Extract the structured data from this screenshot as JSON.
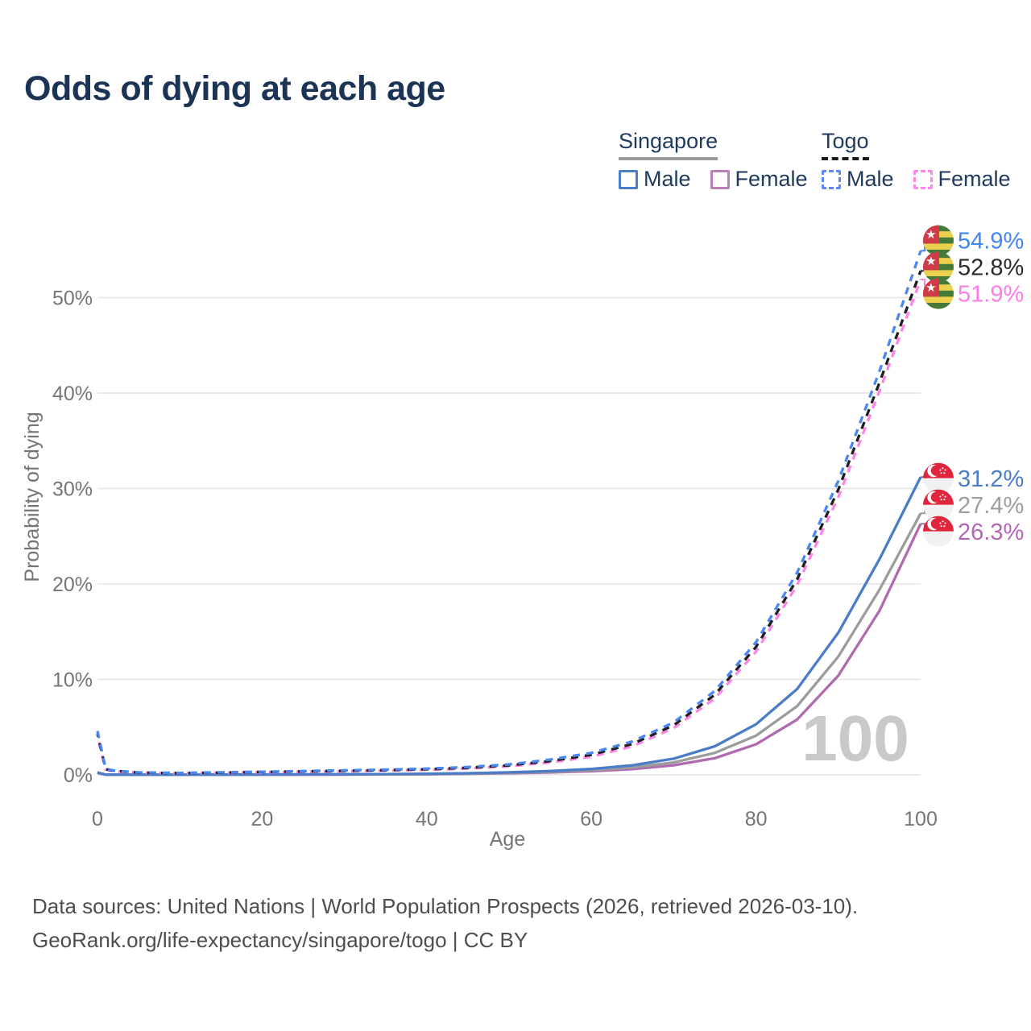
{
  "title": "Odds of dying at each age",
  "legend": {
    "groups": [
      {
        "id": "singapore",
        "label": "Singapore",
        "line_style": "solid",
        "underline_color": "#9a9a9a",
        "items": [
          {
            "id": "male",
            "label": "Male",
            "color": "#4a7cc7",
            "dashed": false
          },
          {
            "id": "female",
            "label": "Female",
            "color": "#ba7fb5",
            "dashed": false
          }
        ]
      },
      {
        "id": "togo",
        "label": "Togo",
        "line_style": "dashed",
        "underline_color": "#1c1c1c",
        "items": [
          {
            "id": "male",
            "label": "Male",
            "color": "#5b8df2",
            "dashed": true
          },
          {
            "id": "female",
            "label": "Female",
            "color": "#ff86e8",
            "dashed": true
          }
        ]
      }
    ]
  },
  "watermark": "100",
  "footer": {
    "line1": "Data sources: United Nations | World Population Prospects (2026, retrieved 2026-03-10).",
    "line2": "GeoRank.org/life-expectancy/singapore/togo | CC BY"
  },
  "chart_data": {
    "type": "line",
    "title": "Odds of dying at each age",
    "xlabel": "Age",
    "ylabel": "Probability of dying",
    "xlim": [
      0,
      100
    ],
    "ylim_pct": [
      0,
      57
    ],
    "x_ticks": [
      0,
      20,
      40,
      60,
      80,
      100
    ],
    "y_ticks": [
      "0%",
      "10%",
      "20%",
      "30%",
      "40%",
      "50%"
    ],
    "grid": "horizontal",
    "hover_age": "100",
    "x": [
      0,
      1,
      2,
      5,
      10,
      15,
      20,
      25,
      30,
      35,
      40,
      45,
      50,
      55,
      60,
      65,
      70,
      75,
      80,
      85,
      90,
      95,
      100
    ],
    "series": [
      {
        "name": "Togo Male",
        "country": "Togo",
        "sex": "male",
        "style": "dashed",
        "color": "#4b87f0",
        "label_color": "#4285f4",
        "dash_offset": 0,
        "flag": "togo",
        "end_label": "54.9%",
        "end_value": 54.9,
        "values": [
          4.6,
          0.65,
          0.45,
          0.25,
          0.2,
          0.26,
          0.33,
          0.4,
          0.47,
          0.55,
          0.65,
          0.82,
          1.1,
          1.6,
          2.3,
          3.5,
          5.5,
          8.8,
          13.9,
          21.2,
          30.8,
          42.3,
          54.9
        ]
      },
      {
        "name": "Togo Both sexes",
        "country": "Togo",
        "sex": "both",
        "style": "dashed",
        "color": "#1f1f1f",
        "label_color": "#2d2d2d",
        "dash_offset": 5,
        "flag": "togo",
        "end_label": "52.8%",
        "end_value": 52.8,
        "values": [
          4.3,
          0.6,
          0.42,
          0.23,
          0.18,
          0.23,
          0.3,
          0.36,
          0.42,
          0.5,
          0.59,
          0.74,
          1.0,
          1.45,
          2.1,
          3.25,
          5.2,
          8.4,
          13.4,
          20.5,
          29.9,
          41.1,
          52.8
        ]
      },
      {
        "name": "Togo Female",
        "country": "Togo",
        "sex": "female",
        "style": "dashed",
        "color": "#ff82e5",
        "label_color": "#ff7de6",
        "dash_offset": 10,
        "flag": "togo",
        "end_label": "51.9%",
        "end_value": 51.9,
        "values": [
          4.0,
          0.56,
          0.4,
          0.22,
          0.17,
          0.21,
          0.27,
          0.32,
          0.38,
          0.45,
          0.53,
          0.66,
          0.9,
          1.3,
          1.9,
          3.0,
          4.9,
          8.0,
          12.9,
          19.9,
          29.1,
          40.2,
          51.9
        ]
      },
      {
        "name": "Singapore Male",
        "country": "Singapore",
        "sex": "male",
        "style": "solid",
        "color": "#4a7cc7",
        "label_color": "#4a7cc7",
        "dash_offset": 0,
        "flag": "singapore",
        "end_label": "31.2%",
        "end_value": 31.2,
        "values": [
          0.25,
          0.02,
          0.015,
          0.01,
          0.01,
          0.025,
          0.04,
          0.05,
          0.06,
          0.08,
          0.11,
          0.17,
          0.26,
          0.4,
          0.62,
          1.0,
          1.7,
          3.0,
          5.3,
          9.0,
          14.9,
          22.6,
          31.2
        ]
      },
      {
        "name": "Singapore Both sexes",
        "country": "Singapore",
        "sex": "both",
        "style": "solid",
        "color": "#9c9c9c",
        "label_color": "#9e9e9e",
        "dash_offset": 0,
        "flag": "singapore",
        "end_label": "27.4%",
        "end_value": 27.4,
        "values": [
          0.22,
          0.018,
          0.012,
          0.01,
          0.01,
          0.02,
          0.03,
          0.04,
          0.05,
          0.065,
          0.09,
          0.14,
          0.21,
          0.32,
          0.49,
          0.78,
          1.3,
          2.3,
          4.1,
          7.2,
          12.4,
          19.4,
          27.4
        ]
      },
      {
        "name": "Singapore Female",
        "country": "Singapore",
        "sex": "female",
        "style": "solid",
        "color": "#b06bb0",
        "label_color": "#b565b5",
        "dash_offset": 0,
        "flag": "singapore",
        "end_label": "26.3%",
        "end_value": 26.3,
        "values": [
          0.2,
          0.015,
          0.01,
          0.008,
          0.008,
          0.012,
          0.02,
          0.025,
          0.035,
          0.05,
          0.07,
          0.11,
          0.17,
          0.25,
          0.38,
          0.6,
          1.0,
          1.75,
          3.2,
          5.8,
          10.4,
          17.2,
          26.3
        ]
      }
    ]
  }
}
